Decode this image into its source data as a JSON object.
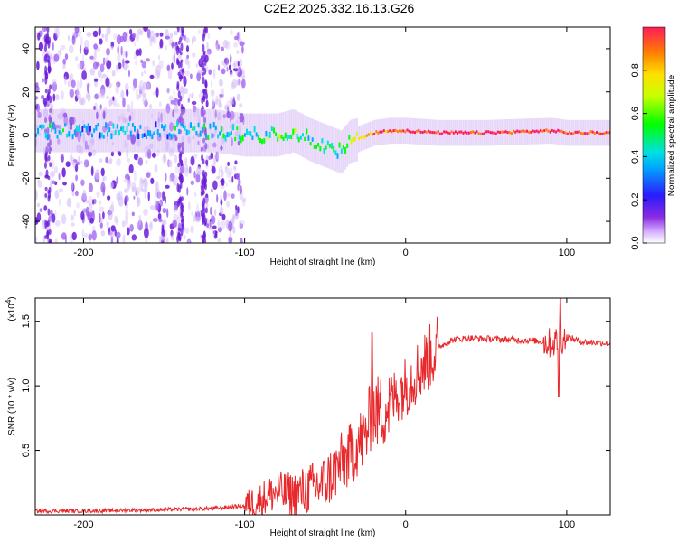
{
  "title": "C2E2.2025.332.16.13.G26",
  "colors": {
    "snr_line": "#e8282b",
    "spectral_low": "#7b1fe0",
    "spectral_high": "#ff1a1a"
  },
  "chart_data": [
    {
      "type": "heatmap",
      "name": "spectrogram",
      "xlabel": "Height of straight line (km)",
      "ylabel": "Frequency (Hz)",
      "xlim": [
        -230,
        127
      ],
      "ylim": [
        -50,
        50
      ],
      "xticks": [
        -200,
        -100,
        0,
        100
      ],
      "yticks": [
        -40,
        -20,
        0,
        20,
        40
      ],
      "colorbar": {
        "label": "Normalized spectral amplitude",
        "range": [
          0.0,
          1.0
        ],
        "ticks": [
          0.0,
          0.2,
          0.4,
          0.6,
          0.8
        ]
      },
      "trace": {
        "x": [
          -225,
          -200,
          -150,
          -120,
          -100,
          -80,
          -70,
          -60,
          -50,
          -40,
          -35,
          -30,
          -20,
          -10,
          0,
          20,
          50,
          90,
          100,
          127
        ],
        "frequency": [
          2,
          2,
          2,
          2,
          0,
          0,
          2,
          -2,
          -5,
          -8,
          -3,
          -2,
          1,
          2,
          2,
          1,
          1,
          2,
          1,
          1
        ],
        "amplitude": [
          0.35,
          0.3,
          0.3,
          0.35,
          0.4,
          0.5,
          0.45,
          0.4,
          0.4,
          0.45,
          0.55,
          0.7,
          0.85,
          0.9,
          0.95,
          0.95,
          0.95,
          0.9,
          0.9,
          0.9
        ]
      }
    },
    {
      "type": "line",
      "name": "snr",
      "xlabel": "Height of straight line (km)",
      "ylabel": "SNR (10 * v/v)",
      "yscale_label": "(x10",
      "yscale_exp": "4",
      "xlim": [
        -230,
        127
      ],
      "ylim": [
        0,
        1.68
      ],
      "xticks": [
        -200,
        -100,
        0,
        100
      ],
      "yticks": [
        0.5,
        1.0,
        1.5
      ],
      "ytick_labels": [
        "0.5",
        "1.0",
        "1.5"
      ],
      "series": [
        {
          "name": "SNR",
          "x": [
            -230,
            -200,
            -150,
            -120,
            -100,
            -90,
            -80,
            -70,
            -60,
            -50,
            -40,
            -35,
            -30,
            -25,
            -22,
            -20,
            -15,
            -10,
            -5,
            0,
            5,
            10,
            15,
            20,
            30,
            40,
            60,
            80,
            90,
            95,
            100,
            110,
            127
          ],
          "values": [
            0.03,
            0.03,
            0.04,
            0.05,
            0.07,
            0.12,
            0.18,
            0.15,
            0.2,
            0.25,
            0.4,
            0.45,
            0.55,
            0.6,
            0.75,
            0.8,
            0.8,
            0.85,
            0.95,
            1.0,
            1.08,
            1.15,
            1.22,
            1.3,
            1.36,
            1.37,
            1.36,
            1.35,
            1.33,
            1.35,
            1.38,
            1.34,
            1.33
          ]
        }
      ]
    }
  ]
}
